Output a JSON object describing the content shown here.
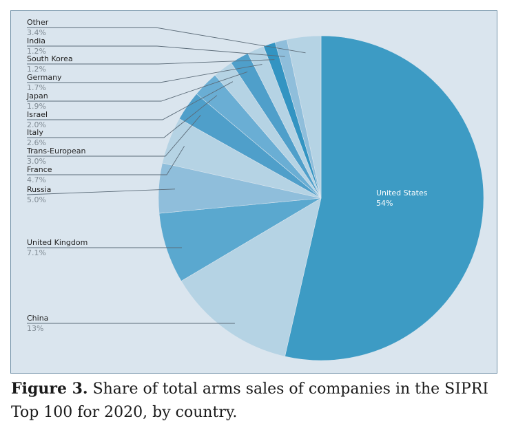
{
  "caption": {
    "figure_label": "Figure 3.",
    "text": " Share of total arms sales of companies in the SIPRI Top 100 for 2020, by country."
  },
  "colors": {
    "background": "#dae5ee",
    "leader": "#5b6b78",
    "slices": [
      "#3d9bc4",
      "#b5d3e4",
      "#5aa8cf",
      "#8fbedb",
      "#b5d3e4",
      "#4f9fca",
      "#6aaed4",
      "#b5d3e4",
      "#4f9fca",
      "#b5d3e4",
      "#3394c2",
      "#8fbedb",
      "#b5d3e4"
    ]
  },
  "chart_data": {
    "type": "pie",
    "title": "",
    "slices": [
      {
        "label": "United States",
        "value": 54,
        "display": "54%"
      },
      {
        "label": "China",
        "value": 13,
        "display": "13%"
      },
      {
        "label": "United Kingdom",
        "value": 7.1,
        "display": "7.1%"
      },
      {
        "label": "Russia",
        "value": 5.0,
        "display": "5.0%"
      },
      {
        "label": "France",
        "value": 4.7,
        "display": "4.7%"
      },
      {
        "label": "Trans-European",
        "value": 3.0,
        "display": "3.0%"
      },
      {
        "label": "Italy",
        "value": 2.6,
        "display": "2.6%"
      },
      {
        "label": "Israel",
        "value": 2.0,
        "display": "2.0%"
      },
      {
        "label": "Japan",
        "value": 1.9,
        "display": "1.9%"
      },
      {
        "label": "Germany",
        "value": 1.7,
        "display": "1.7%"
      },
      {
        "label": "South Korea",
        "value": 1.2,
        "display": "1.2%"
      },
      {
        "label": "India",
        "value": 1.2,
        "display": "1.2%"
      },
      {
        "label": "Other",
        "value": 3.4,
        "display": "3.4%"
      }
    ]
  }
}
